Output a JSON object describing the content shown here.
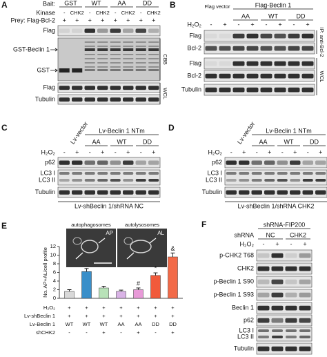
{
  "panels": {
    "A": {
      "letter": "A",
      "bait_label": "Bait:",
      "baits": [
        "GST",
        "WT",
        "AA",
        "DD"
      ],
      "kinase_label": "Kinase",
      "kinase": [
        "-",
        "CHK2",
        "-",
        "CHK2",
        "-",
        "CHK2",
        "-",
        "CHK2"
      ],
      "prey_label": "Prey: Flag-Bcl-2",
      "prey": [
        "+",
        "+",
        "+",
        "+",
        "+",
        "+",
        "+",
        "+"
      ],
      "rows": [
        "Flag",
        "GST-Beclin 1",
        "GST",
        "Flag",
        "Tubulin"
      ],
      "side_labels": [
        "CBB",
        "WCL"
      ]
    },
    "B": {
      "letter": "B",
      "vector_label": "Flag vector",
      "beclin_label": "Flag-Beclin 1",
      "groups": [
        "AA",
        "WT",
        "DD"
      ],
      "treatment": "H₂O₂",
      "signs": [
        "-",
        "+",
        "-",
        "+",
        "-",
        "+",
        "-",
        "+"
      ],
      "rows": [
        "Flag",
        "Bcl-2",
        "Flag",
        "Bcl-2",
        "Tubulin"
      ],
      "side_labels": [
        "IP: anti-Bcl-2",
        "WCL"
      ]
    },
    "C": {
      "letter": "C",
      "vector_label": "Lv-vector",
      "ntm_label": "Lv-Beclin 1 NTm",
      "groups": [
        "AA",
        "WT",
        "DD"
      ],
      "treatment": "H₂O₂",
      "signs": [
        "-",
        "+",
        "-",
        "+",
        "-",
        "+",
        "-",
        "+"
      ],
      "rows": [
        "p62",
        "LC3 I",
        "LC3 II",
        "Tubulin"
      ],
      "footer": "Lv-shBeclin 1/shRNA NC"
    },
    "D": {
      "letter": "D",
      "vector_label": "Lv-vector",
      "ntm_label": "Lv-Beclin 1 NTm",
      "groups": [
        "AA",
        "WT",
        "DD"
      ],
      "treatment": "H₂O₂",
      "signs": [
        "-",
        "+",
        "-",
        "+",
        "-",
        "+",
        "-",
        "+"
      ],
      "rows": [
        "p62",
        "LC3 I",
        "LC3 II",
        "Tubulin"
      ],
      "footer": "Lv-shBeclin 1/shRNA CHK2"
    },
    "F": {
      "letter": "F",
      "title": "shRNA-FIP200",
      "shrna_label": "shRNA",
      "groups": [
        "NC",
        "CHK2"
      ],
      "treatment": "H₂O₂",
      "signs": [
        "-",
        "+",
        "-",
        "+"
      ],
      "rows": [
        "p-CHK2 T68",
        "CHK2",
        "p-Beclin 1 S90",
        "p-Beclin 1 S93",
        "Beclin 1",
        "p62",
        "LC3 I",
        "LC3 II",
        "Tubulin"
      ]
    }
  },
  "chart_data": {
    "type": "bar",
    "letter": "E",
    "y_label": "No. AP+AL/cell profile",
    "ylim": [
      0,
      12
    ],
    "yticks": [
      0,
      2,
      4,
      6,
      8,
      10,
      12
    ],
    "values": [
      1.6,
      6.2,
      2.4,
      1.6,
      2.0,
      5.3,
      9.6
    ],
    "errors": [
      0.4,
      0.7,
      0.4,
      0.3,
      0.4,
      0.6,
      0.9
    ],
    "colors": [
      "#d9d9d9",
      "#3a8fc9",
      "#b8e2b8",
      "#d9b3e6",
      "#e89ad8",
      "#f15a3b",
      "#f26a48"
    ],
    "annotations": [
      null,
      null,
      null,
      null,
      "#",
      "*",
      "&"
    ],
    "images": [
      {
        "title": "autophagosomes",
        "tag": "AP"
      },
      {
        "title": "autolysosomes",
        "tag": "AL"
      }
    ],
    "table": {
      "rows": [
        {
          "label": "H₂O₂",
          "cells": [
            "+",
            "+",
            "+",
            "+",
            "+",
            "+",
            "+"
          ]
        },
        {
          "label": "Lv-shBeclin 1",
          "cells": [
            "+",
            "+",
            "+",
            "+",
            "+",
            "+",
            "+"
          ]
        },
        {
          "label": "Lv-Beclin 1",
          "cells": [
            "WT",
            "WT",
            "WT",
            "AA",
            "AA",
            "DD",
            "DD"
          ]
        },
        {
          "label": "shCHK2",
          "cells": [
            "-",
            "-",
            "+",
            "-",
            "+",
            "-",
            "+"
          ]
        }
      ]
    }
  }
}
